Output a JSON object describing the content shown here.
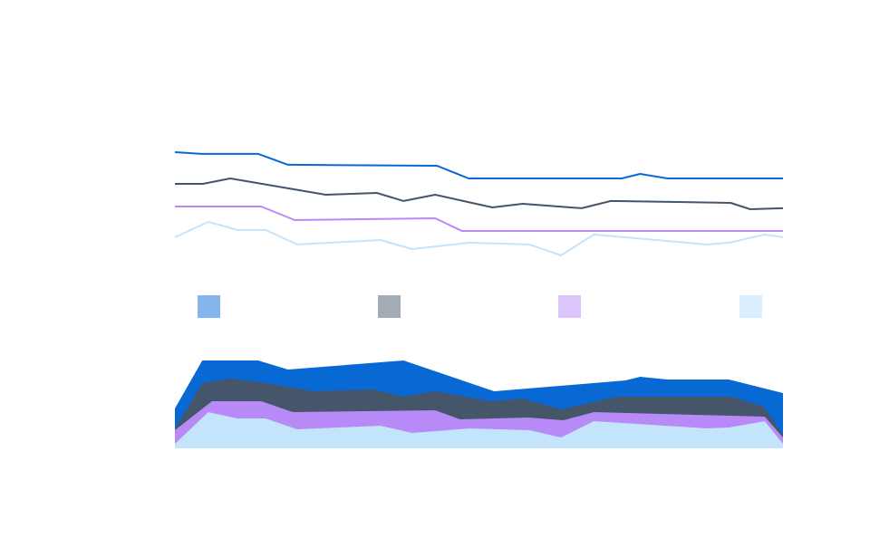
{
  "chart_data": [
    {
      "type": "line",
      "xlim": [
        0,
        100
      ],
      "ylim": [
        0,
        100
      ],
      "grid": false,
      "axes_visible": false,
      "series": [
        {
          "color": "#0868d4",
          "x": [
            0,
            4.3,
            13.7,
            18.6,
            43.1,
            48.3,
            73.5,
            76.5,
            81.0,
            100
          ],
          "y": [
            82.5,
            81.3,
            81.3,
            73.8,
            73.1,
            64.4,
            64.4,
            67.5,
            64.4,
            64.4
          ]
        },
        {
          "color": "#45556a",
          "x": [
            0,
            4.6,
            9.1,
            24.8,
            33.2,
            37.6,
            42.8,
            52.2,
            57.2,
            66.9,
            71.7,
            91.4,
            94.6,
            100
          ],
          "y": [
            60.6,
            60.6,
            64.4,
            53.1,
            54.4,
            48.8,
            53.1,
            44.4,
            46.9,
            43.8,
            48.8,
            47.5,
            43.1,
            43.8
          ]
        },
        {
          "color": "#b78af7",
          "x": [
            0,
            14.2,
            19.7,
            42.8,
            47.2,
            100
          ],
          "y": [
            45,
            45,
            35.6,
            36.9,
            28.1,
            28.1
          ]
        },
        {
          "color": "#c3e4fb",
          "x": [
            0,
            5.5,
            10.3,
            14.9,
            20.1,
            33.8,
            39.0,
            48.4,
            58.3,
            63.5,
            68.9,
            87.5,
            91.1,
            97.0,
            100
          ],
          "y": [
            23.8,
            34.4,
            28.8,
            28.8,
            18.8,
            21.9,
            15.6,
            20,
            18.8,
            11.3,
            25.6,
            18.8,
            20,
            25.6,
            23.8
          ]
        }
      ],
      "legend": {
        "placement": "bottom",
        "swatches": [
          "#86b4ec",
          "#a3abb4",
          "#dac6fb",
          "#daeffd"
        ]
      }
    },
    {
      "type": "area",
      "stacked": true,
      "xlim": [
        0,
        100
      ],
      "ylim": [
        0,
        100
      ],
      "grid": false,
      "axes_visible": false,
      "layers_cumulative_top": [
        {
          "color": "#c3e4fb",
          "x": [
            0,
            5.5,
            10.3,
            14.9,
            20.1,
            33.8,
            39.0,
            48.4,
            58.3,
            63.5,
            68.9,
            87.5,
            91.1,
            97.0,
            100
          ],
          "y": [
            5,
            40,
            33,
            33,
            21,
            25,
            17,
            22,
            20,
            12,
            30,
            22,
            23,
            30,
            5
          ]
        },
        {
          "color": "#b78af7",
          "x": [
            0,
            6.1,
            14.2,
            19.4,
            42.8,
            46.9,
            58.1,
            63.9,
            68.9,
            97.0,
            100
          ],
          "y": [
            20,
            52,
            52,
            40,
            42,
            32,
            34,
            31,
            40,
            35,
            12
          ]
        },
        {
          "color": "#45556a",
          "x": [
            0,
            4.5,
            9.1,
            14.9,
            22.7,
            32.6,
            37.6,
            42.8,
            52.0,
            57.2,
            63.6,
            72.6,
            91.6,
            96.8,
            100
          ],
          "y": [
            21,
            72,
            77,
            72,
            63,
            65,
            57,
            63,
            52,
            55,
            43,
            57,
            57,
            46,
            15
          ]
        },
        {
          "color": "#0868d4",
          "x": [
            0,
            4.5,
            13.7,
            18.6,
            37.6,
            52.5,
            74.1,
            76.5,
            81.0,
            91.1,
            100
          ],
          "y": [
            44,
            97,
            97,
            87,
            97,
            63,
            75,
            79,
            76,
            76,
            61
          ]
        }
      ]
    }
  ]
}
